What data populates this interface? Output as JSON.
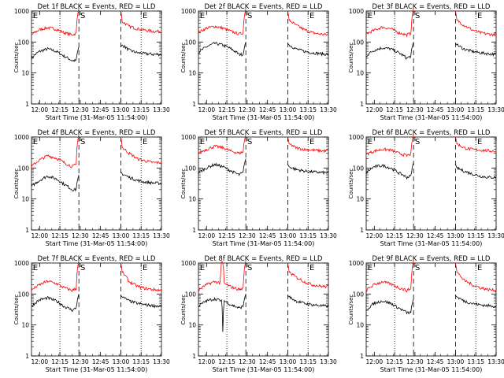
{
  "chart_data": {
    "type": "line",
    "xlabel": "Start Time (31-Mar-05 11:54:00)",
    "ylabel": "Counts/sec",
    "x_range_min": [
      0,
      96
    ],
    "x_tick_values_min": [
      6,
      21,
      36,
      51,
      66,
      81,
      96
    ],
    "x_tick_labels": [
      "12:00",
      "12:15",
      "12:30",
      "12:45",
      "13:00",
      "13:15",
      "13:30"
    ],
    "y_scale": "log",
    "y_range": [
      1,
      1000
    ],
    "y_tick_labels": [
      "1",
      "10",
      "100",
      "1000"
    ],
    "marker_labels": [
      "E",
      "S",
      "E"
    ],
    "marker_minutes": [
      21,
      35,
      66,
      81
    ],
    "marker_styles": [
      "dotted",
      "dashed",
      "dashed",
      "dotted"
    ],
    "gap_minutes": [
      35,
      66
    ],
    "series_colors": [
      "#000000",
      "#ff0000"
    ],
    "panels": [
      {
        "title": "Det 1f BLACK = Events, RED = LLD",
        "series": [
          {
            "x": [
              0,
              6,
              12,
              18,
              24,
              30,
              33,
              35
            ],
            "values": [
              30,
              50,
              60,
              50,
              35,
              25,
              25,
              70
            ]
          },
          {
            "x": [
              0,
              6,
              12,
              18,
              24,
              30,
              33,
              35
            ],
            "values": [
              170,
              250,
              290,
              260,
              200,
              170,
              190,
              1200
            ]
          },
          {
            "x": [
              66,
              67,
              72,
              78,
              84,
              90,
              96
            ],
            "values": [
              70,
              80,
              55,
              45,
              42,
              40,
              40
            ]
          },
          {
            "x": [
              66,
              67,
              72,
              78,
              84,
              90,
              96
            ],
            "values": [
              1000,
              450,
              320,
              270,
              240,
              220,
              220
            ]
          }
        ]
      },
      {
        "title": "Det 2f BLACK = Events, RED = LLD",
        "series": [
          {
            "x": [
              0,
              6,
              12,
              18,
              24,
              30,
              33,
              35
            ],
            "values": [
              45,
              70,
              90,
              80,
              60,
              40,
              40,
              100
            ]
          },
          {
            "x": [
              0,
              6,
              12,
              18,
              24,
              30,
              33,
              35
            ],
            "values": [
              200,
              280,
              320,
              280,
              220,
              180,
              200,
              1200
            ]
          },
          {
            "x": [
              66,
              67,
              72,
              78,
              84,
              90,
              96
            ],
            "values": [
              90,
              80,
              60,
              50,
              45,
              42,
              40
            ]
          },
          {
            "x": [
              66,
              67,
              72,
              78,
              84,
              90,
              96
            ],
            "values": [
              1000,
              500,
              350,
              250,
              200,
              180,
              170
            ]
          }
        ]
      },
      {
        "title": "Det 3f BLACK = Events, RED = LLD",
        "series": [
          {
            "x": [
              0,
              6,
              12,
              18,
              24,
              30,
              33,
              35
            ],
            "values": [
              35,
              55,
              65,
              60,
              45,
              30,
              35,
              100
            ]
          },
          {
            "x": [
              0,
              6,
              12,
              18,
              24,
              30,
              33,
              35
            ],
            "values": [
              180,
              240,
              300,
              270,
              200,
              170,
              190,
              1200
            ]
          },
          {
            "x": [
              66,
              67,
              72,
              78,
              84,
              90,
              96
            ],
            "values": [
              90,
              80,
              60,
              50,
              45,
              42,
              40
            ]
          },
          {
            "x": [
              66,
              67,
              72,
              78,
              84,
              90,
              96
            ],
            "values": [
              1000,
              500,
              350,
              250,
              200,
              180,
              170
            ]
          }
        ]
      },
      {
        "title": "Det 4f BLACK = Events, RED = LLD",
        "series": [
          {
            "x": [
              0,
              6,
              12,
              18,
              24,
              30,
              33,
              35
            ],
            "values": [
              25,
              40,
              55,
              45,
              30,
              20,
              20,
              60
            ]
          },
          {
            "x": [
              0,
              6,
              12,
              18,
              24,
              30,
              33,
              35
            ],
            "values": [
              110,
              180,
              250,
              210,
              150,
              110,
              130,
              1200
            ]
          },
          {
            "x": [
              66,
              67,
              72,
              78,
              84,
              90,
              96
            ],
            "values": [
              75,
              65,
              50,
              40,
              35,
              33,
              32
            ]
          },
          {
            "x": [
              66,
              67,
              72,
              78,
              84,
              90,
              96
            ],
            "values": [
              1000,
              450,
              300,
              200,
              170,
              150,
              150
            ]
          }
        ]
      },
      {
        "title": "Det 5f BLACK = Events, RED = LLD",
        "series": [
          {
            "x": [
              0,
              6,
              12,
              18,
              24,
              30,
              33,
              35
            ],
            "values": [
              70,
              100,
              130,
              110,
              80,
              60,
              70,
              200
            ]
          },
          {
            "x": [
              0,
              6,
              12,
              18,
              24,
              30,
              33,
              35
            ],
            "values": [
              300,
              400,
              500,
              450,
              350,
              300,
              330,
              1200
            ]
          },
          {
            "x": [
              66,
              67,
              72,
              78,
              84,
              90,
              96
            ],
            "values": [
              130,
              110,
              90,
              80,
              75,
              72,
              70
            ]
          },
          {
            "x": [
              66,
              67,
              72,
              78,
              84,
              90,
              96
            ],
            "values": [
              1000,
              600,
              450,
              400,
              380,
              360,
              350
            ]
          }
        ]
      },
      {
        "title": "Det 6f BLACK = Events, RED = LLD",
        "series": [
          {
            "x": [
              0,
              6,
              12,
              18,
              24,
              30,
              33,
              35
            ],
            "values": [
              70,
              110,
              120,
              100,
              70,
              50,
              55,
              150
            ]
          },
          {
            "x": [
              0,
              6,
              12,
              18,
              24,
              30,
              33,
              35
            ],
            "values": [
              280,
              350,
              400,
              380,
              300,
              250,
              280,
              1200
            ]
          },
          {
            "x": [
              66,
              67,
              72,
              78,
              84,
              90,
              96
            ],
            "values": [
              130,
              100,
              80,
              65,
              55,
              50,
              50
            ]
          },
          {
            "x": [
              66,
              67,
              72,
              78,
              84,
              90,
              96
            ],
            "values": [
              1000,
              600,
              450,
              400,
              380,
              360,
              350
            ]
          }
        ]
      },
      {
        "title": "Det 7f BLACK = Events, RED = LLD",
        "series": [
          {
            "x": [
              0,
              6,
              12,
              18,
              24,
              30,
              33,
              35
            ],
            "values": [
              40,
              65,
              75,
              60,
              40,
              30,
              35,
              100
            ]
          },
          {
            "x": [
              0,
              6,
              12,
              18,
              24,
              30,
              33,
              35
            ],
            "values": [
              130,
              200,
              260,
              220,
              160,
              130,
              150,
              1200
            ]
          },
          {
            "x": [
              66,
              67,
              72,
              78,
              84,
              90,
              96
            ],
            "values": [
              90,
              80,
              60,
              50,
              45,
              42,
              40
            ]
          },
          {
            "x": [
              66,
              67,
              72,
              78,
              84,
              90,
              96
            ],
            "values": [
              1000,
              500,
              250,
              180,
              150,
              140,
              130
            ]
          }
        ]
      },
      {
        "title": "Det 8f BLACK = Events, RED = LLD",
        "series": [
          {
            "x": [
              0,
              6,
              12,
              17,
              18,
              19,
              24,
              30,
              33,
              35
            ],
            "values": [
              40,
              60,
              70,
              60,
              6,
              60,
              45,
              35,
              40,
              100
            ]
          },
          {
            "x": [
              0,
              6,
              12,
              16,
              17,
              18,
              19,
              24,
              30,
              33,
              35
            ],
            "values": [
              130,
              200,
              250,
              230,
              1000,
              1000,
              220,
              170,
              140,
              150,
              1200
            ]
          },
          {
            "x": [
              66,
              67,
              72,
              78,
              84,
              90,
              96
            ],
            "values": [
              90,
              80,
              60,
              50,
              45,
              42,
              40
            ]
          },
          {
            "x": [
              66,
              67,
              72,
              78,
              84,
              90,
              96
            ],
            "values": [
              1000,
              500,
              350,
              250,
              200,
              180,
              170
            ]
          }
        ]
      },
      {
        "title": "Det 9f BLACK = Events, RED = LLD",
        "series": [
          {
            "x": [
              0,
              6,
              12,
              18,
              24,
              30,
              33,
              35
            ],
            "values": [
              30,
              50,
              60,
              50,
              35,
              25,
              25,
              70
            ]
          },
          {
            "x": [
              0,
              6,
              12,
              18,
              24,
              30,
              33,
              35
            ],
            "values": [
              130,
              200,
              250,
              210,
              160,
              130,
              150,
              1200
            ]
          },
          {
            "x": [
              66,
              67,
              72,
              78,
              84,
              90,
              96
            ],
            "values": [
              90,
              80,
              60,
              50,
              45,
              42,
              40
            ]
          },
          {
            "x": [
              66,
              67,
              72,
              78,
              84,
              90,
              96
            ],
            "values": [
              1000,
              500,
              280,
              200,
              160,
              140,
              130
            ]
          }
        ]
      }
    ]
  }
}
